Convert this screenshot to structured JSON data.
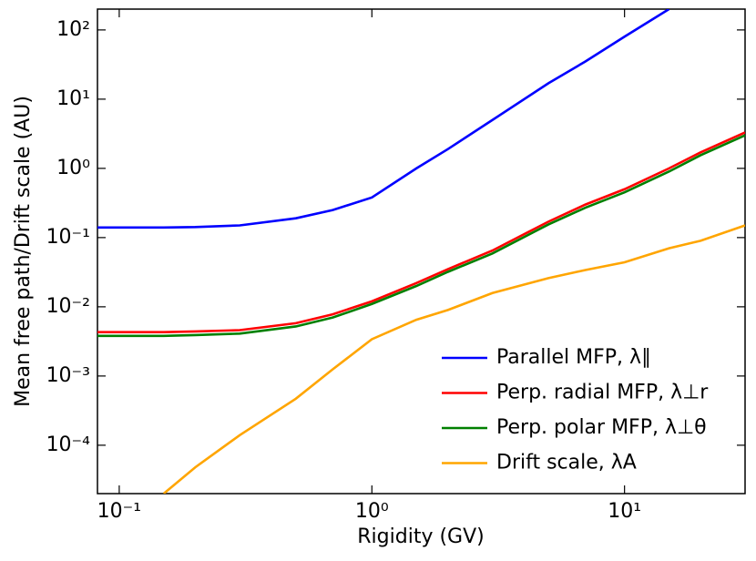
{
  "chart_data": {
    "type": "line",
    "xlabel": "Rigidity (GV)",
    "ylabel": "Mean free path/Drift scale (AU)",
    "xscale": "log",
    "yscale": "log",
    "xlim": [
      0.082,
      30
    ],
    "ylim": [
      2e-05,
      200
    ],
    "xticks": [
      {
        "value": 0.1,
        "label": "10⁻¹"
      },
      {
        "value": 1,
        "label": "10⁰"
      },
      {
        "value": 10,
        "label": "10¹"
      }
    ],
    "yticks": [
      {
        "value": 0.0001,
        "label": "10⁻⁴"
      },
      {
        "value": 0.001,
        "label": "10⁻³"
      },
      {
        "value": 0.01,
        "label": "10⁻²"
      },
      {
        "value": 0.1,
        "label": "10⁻¹"
      },
      {
        "value": 1,
        "label": "10⁰"
      },
      {
        "value": 10,
        "label": "10¹"
      },
      {
        "value": 100,
        "label": "10²"
      }
    ],
    "legend": "lower right",
    "x": [
      0.082,
      0.1,
      0.15,
      0.2,
      0.3,
      0.5,
      0.7,
      1,
      1.5,
      2,
      3,
      5,
      7,
      10,
      15,
      20,
      30
    ],
    "series": [
      {
        "name": "Parallel MFP, λ∥",
        "color": "#0000ff",
        "values": [
          0.14,
          0.14,
          0.14,
          0.142,
          0.15,
          0.19,
          0.25,
          0.38,
          1.0,
          1.9,
          5,
          17,
          35,
          80,
          200,
          null,
          null
        ]
      },
      {
        "name": "Perp. radial MFP, λ⊥r",
        "color": "#ff0000",
        "values": [
          0.0043,
          0.0043,
          0.0043,
          0.0044,
          0.0046,
          0.0058,
          0.0078,
          0.012,
          0.022,
          0.035,
          0.065,
          0.17,
          0.3,
          0.5,
          1.0,
          1.7,
          3.3
        ]
      },
      {
        "name": "Perp. polar  MFP, λ⊥θ",
        "color": "#008000",
        "values": [
          0.0038,
          0.0038,
          0.0038,
          0.0039,
          0.0041,
          0.0052,
          0.007,
          0.011,
          0.02,
          0.032,
          0.059,
          0.155,
          0.27,
          0.45,
          0.9,
          1.55,
          3.0
        ]
      },
      {
        "name": "Drift scale, λA",
        "color": "#ffa500",
        "values": [
          null,
          null,
          2e-05,
          4.8e-05,
          0.00014,
          0.00047,
          0.00125,
          0.0034,
          0.0065,
          0.009,
          0.0158,
          0.026,
          0.034,
          0.044,
          0.07,
          0.09,
          0.15
        ]
      }
    ]
  }
}
